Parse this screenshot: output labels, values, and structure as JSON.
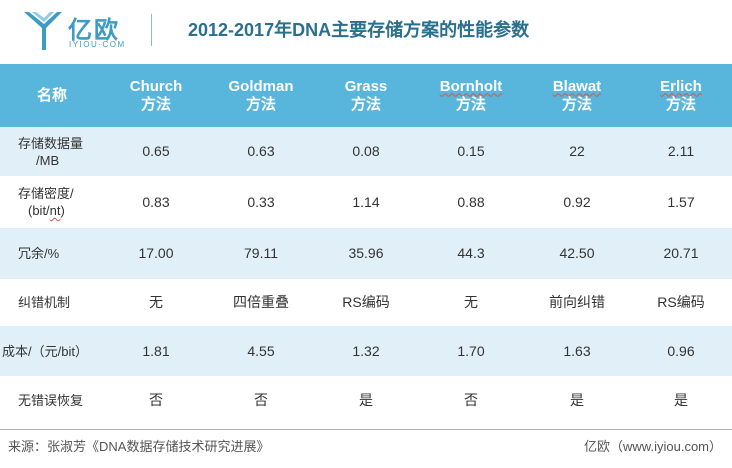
{
  "header": {
    "logo_text": "亿欧",
    "logo_subtext": "IYIOU·COM",
    "title": "2012-2017年DNA主要存储方案的性能参数"
  },
  "table": {
    "columns": [
      {
        "line1": "名称",
        "line2": ""
      },
      {
        "line1": "Church",
        "line2": "方法"
      },
      {
        "line1": "Goldman",
        "line2": "方法"
      },
      {
        "line1": "Grass",
        "line2": "方法"
      },
      {
        "line1": "Bornholt",
        "line2": "方法"
      },
      {
        "line1": "Blawat",
        "line2": "方法"
      },
      {
        "line1": "Erlich",
        "line2": "方法"
      }
    ],
    "rows": [
      {
        "label_line1": "存储数据量",
        "label_line2": "/MB",
        "values": [
          "0.65",
          "0.63",
          "0.08",
          "0.15",
          "22",
          "2.11"
        ]
      },
      {
        "label_line1": "存储密度/",
        "label_line2": "(bit/nt)",
        "values": [
          "0.83",
          "0.33",
          "1.14",
          "0.88",
          "0.92",
          "1.57"
        ]
      },
      {
        "label_line1": "冗余/%",
        "label_line2": "",
        "values": [
          "17.00",
          "79.11",
          "35.96",
          "44.3",
          "42.50",
          "20.71"
        ]
      },
      {
        "label_line1": "纠错机制",
        "label_line2": "",
        "values": [
          "无",
          "四倍重叠",
          "RS编码",
          "无",
          "前向纠错",
          "RS编码"
        ]
      },
      {
        "label_line1": "成本/（元/bit）",
        "label_line2": "",
        "values": [
          "1.81",
          "4.55",
          "1.32",
          "1.70",
          "1.63",
          "0.96"
        ]
      },
      {
        "label_line1": "无错误恢复",
        "label_line2": "",
        "values": [
          "否",
          "否",
          "是",
          "否",
          "是",
          "是"
        ]
      }
    ]
  },
  "footer": {
    "source": "来源：张淑芳《DNA数据存储技术研究进展》",
    "credit": "亿欧（www.iyiou.com）"
  },
  "colors": {
    "header_row": "#58b6dc",
    "tint_row": "#e1f0f8",
    "title": "#2a6f8d",
    "logo": "#3e9bc4"
  }
}
